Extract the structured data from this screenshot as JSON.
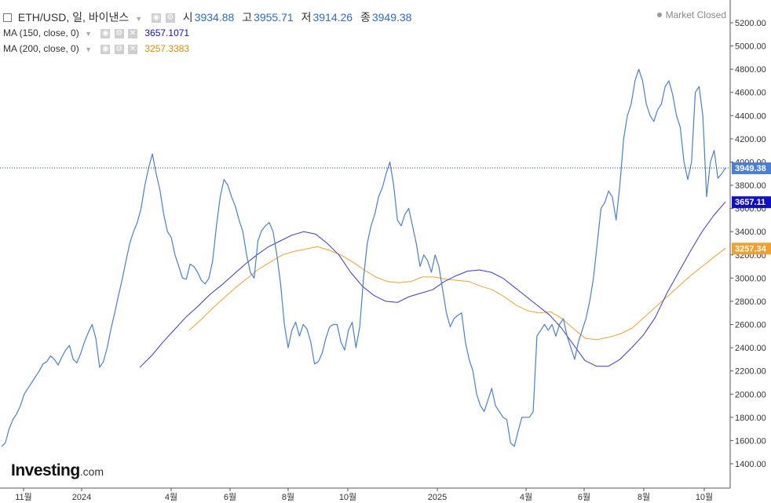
{
  "header": {
    "symbol_title": "ETH/USD, 일, 바이낸스",
    "open_label": "시",
    "open_value": "3934.88",
    "high_label": "고",
    "high_value": "3955.71",
    "low_label": "저",
    "low_value": "3914.26",
    "close_label": "종",
    "close_value": "3949.38",
    "market_status": "Market Closed"
  },
  "indicators": [
    {
      "label": "MA (150, close, 0)",
      "value": "3657.1071",
      "color": "#1010c8"
    },
    {
      "label": "MA (200, close, 0)",
      "value": "3257.3383",
      "color": "#e08b00"
    }
  ],
  "logo": {
    "name": "Investing",
    "suffix": ".com"
  },
  "colors": {
    "price": "#4a7fd4",
    "ma150": "#3a3ad0",
    "ma200": "#f0a030",
    "price_tag": "#4a7fd4",
    "ma150_tag": "#1010c8",
    "ma200_tag": "#f0a030"
  },
  "chart_data": {
    "type": "line",
    "x_ticks": [
      "11월",
      "2024",
      "4월",
      "6월",
      "8월",
      "10월",
      "2025",
      "4월",
      "6월",
      "8월",
      "10월"
    ],
    "y_ticks": [
      "1400.00",
      "1600.00",
      "1800.00",
      "2000.00",
      "2200.00",
      "2400.00",
      "2600.00",
      "2800.00",
      "3000.00",
      "3200.00",
      "3400.00",
      "3600.00",
      "3800.00",
      "4000.00",
      "4200.00",
      "4400.00",
      "4600.00",
      "4800.00",
      "5000.00",
      "5200.00"
    ],
    "ylim": [
      1300,
      5350
    ],
    "price_tags": {
      "close": "3949.38",
      "ma150": "3657.11",
      "ma200": "3257.34"
    },
    "series": [
      {
        "name": "ETH/USD",
        "values": [
          1550,
          1580,
          1700,
          1780,
          1830,
          1900,
          2000,
          2050,
          2100,
          2150,
          2200,
          2260,
          2280,
          2330,
          2300,
          2250,
          2320,
          2380,
          2420,
          2300,
          2270,
          2350,
          2450,
          2530,
          2600,
          2480,
          2230,
          2280,
          2400,
          2560,
          2700,
          2850,
          2990,
          3150,
          3300,
          3400,
          3480,
          3600,
          3800,
          3950,
          4070,
          3900,
          3760,
          3550,
          3400,
          3350,
          3200,
          3100,
          3000,
          2990,
          3120,
          3100,
          3050,
          2980,
          2950,
          3000,
          3150,
          3450,
          3700,
          3850,
          3800,
          3700,
          3620,
          3500,
          3400,
          3200,
          3050,
          3000,
          3320,
          3410,
          3450,
          3480,
          3400,
          3200,
          2950,
          2600,
          2400,
          2550,
          2620,
          2500,
          2600,
          2560,
          2450,
          2260,
          2280,
          2350,
          2480,
          2580,
          2600,
          2600,
          2450,
          2380,
          2550,
          2620,
          2400,
          2580,
          3000,
          3300,
          3450,
          3550,
          3700,
          3780,
          3900,
          4000,
          3800,
          3500,
          3450,
          3550,
          3600,
          3450,
          3300,
          3100,
          3200,
          3150,
          3050,
          3200,
          3100,
          2900,
          2700,
          2580,
          2650,
          2680,
          2700,
          2450,
          2300,
          2200,
          2000,
          1900,
          1850,
          1950,
          2050,
          1900,
          1850,
          1800,
          1780,
          1580,
          1550,
          1680,
          1800,
          1800,
          1800,
          1850,
          2500,
          2550,
          2600,
          2550,
          2600,
          2500,
          2600,
          2650,
          2500,
          2400,
          2300,
          2450,
          2550,
          2650,
          2800,
          3000,
          3300,
          3600,
          3650,
          3750,
          3700,
          3500,
          3800,
          4200,
          4400,
          4500,
          4700,
          4800,
          4700,
          4500,
          4400,
          4350,
          4450,
          4500,
          4650,
          4700,
          4580,
          4400,
          4300,
          4000,
          3850,
          4000,
          4600,
          4650,
          4400,
          3700,
          4000,
          4100,
          3860,
          3900,
          3949.38
        ]
      },
      {
        "name": "MA (150, close, 0)",
        "values": [
          2230,
          2330,
          2450,
          2560,
          2670,
          2760,
          2860,
          2940,
          3030,
          3120,
          3200,
          3270,
          3320,
          3370,
          3400,
          3380,
          3300,
          3200,
          3050,
          2930,
          2850,
          2800,
          2790,
          2840,
          2870,
          2900,
          2970,
          3020,
          3060,
          3070,
          3050,
          3000,
          2920,
          2840,
          2760,
          2680,
          2570,
          2430,
          2290,
          2240,
          2240,
          2300,
          2400,
          2510,
          2660,
          2870,
          3050,
          3230,
          3400,
          3540,
          3657.11
        ]
      },
      {
        "name": "MA (200, close, 0)",
        "values": [
          2550,
          2640,
          2740,
          2830,
          2920,
          3000,
          3080,
          3140,
          3200,
          3230,
          3250,
          3270,
          3240,
          3200,
          3140,
          3070,
          3010,
          2970,
          2960,
          2970,
          3010,
          3010,
          2990,
          2980,
          2970,
          2930,
          2900,
          2840,
          2770,
          2720,
          2700,
          2710,
          2650,
          2560,
          2480,
          2470,
          2490,
          2520,
          2570,
          2660,
          2750,
          2840,
          2930,
          3020,
          3100,
          3180,
          3257.34
        ]
      }
    ]
  }
}
